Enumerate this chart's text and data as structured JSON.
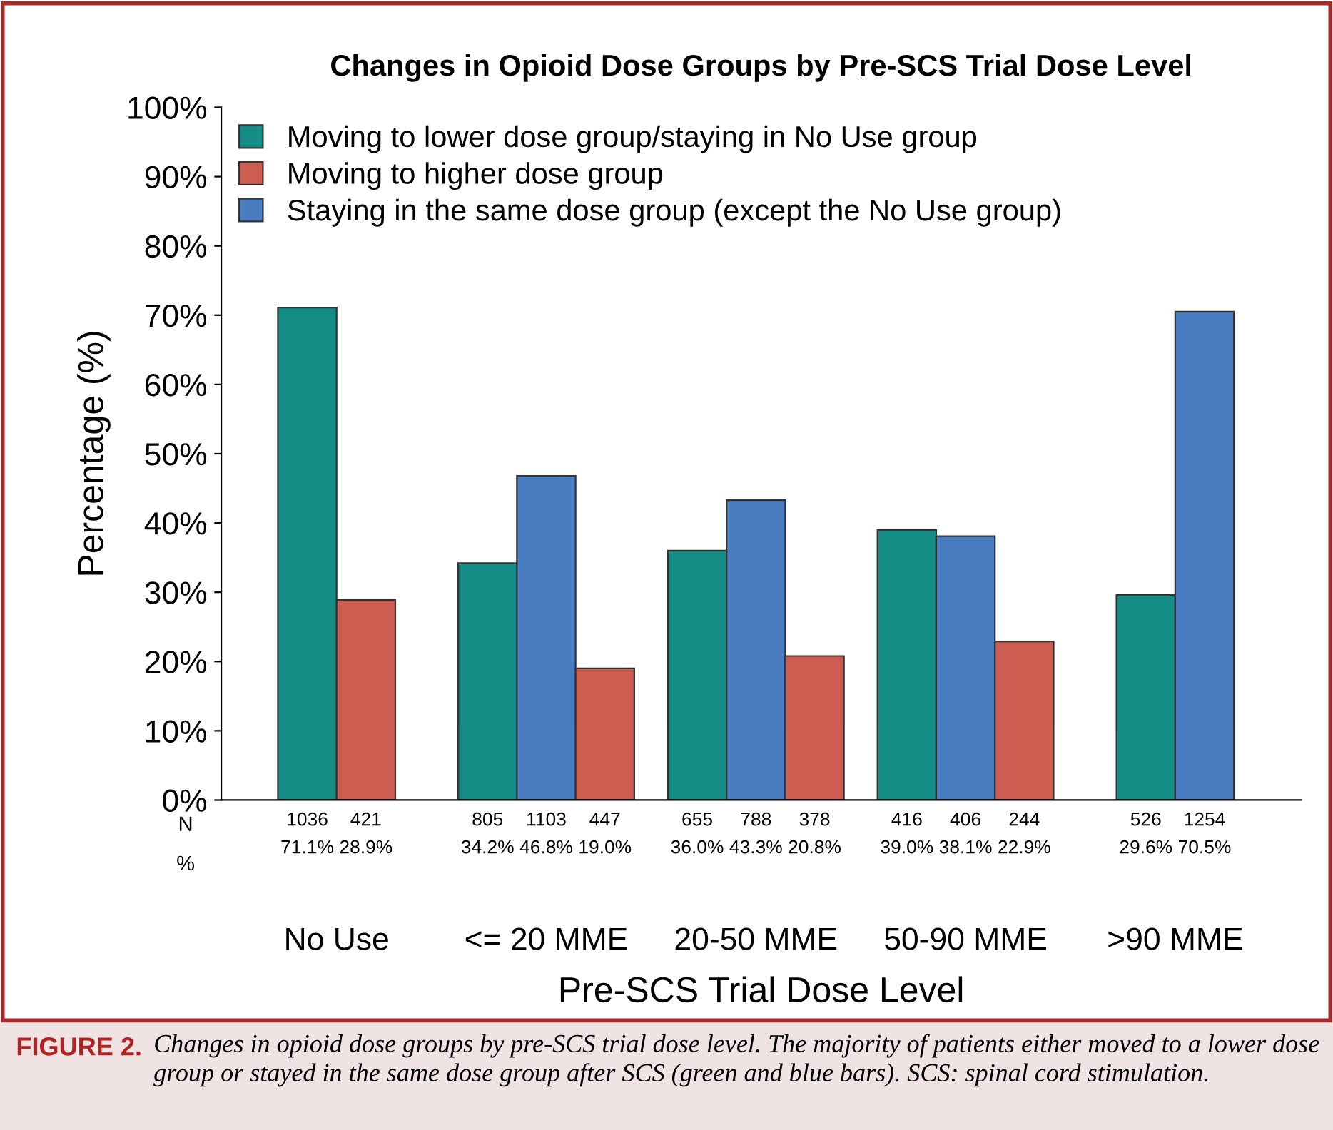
{
  "chart_data": {
    "type": "bar",
    "title": "Changes in Opioid Dose Groups by Pre-SCS Trial Dose Level",
    "xlabel": "Pre-SCS Trial Dose Level",
    "ylabel": "Percentage (%)",
    "categories": [
      "No Use",
      "<= 20 MME",
      "20-50 MME",
      "50-90 MME",
      ">90 MME"
    ],
    "series": [
      {
        "name": "Moving to lower dose group/staying in No Use group",
        "color": "#138d86",
        "values": [
          71.1,
          34.2,
          36.0,
          39.0,
          29.6
        ],
        "value_labels": [
          "1036\n71.1%",
          "805\n34.2%",
          "655\n36.0%",
          "416\n39.0%",
          "526\n29.6%"
        ]
      },
      {
        "name": "Moving to higher dose group",
        "color": "#cd5c51",
        "values": [
          28.9,
          19.0,
          20.8,
          22.9,
          null
        ],
        "value_labels": [
          "421\n28.9%",
          "447\n19.0%",
          "378\n20.8%",
          "244\n22.9%",
          null
        ]
      },
      {
        "name": "Staying in the same dose group (except the No Use group)",
        "color": "#4a7cc2",
        "values": [
          null,
          46.8,
          43.3,
          38.1,
          70.5
        ],
        "value_labels": [
          null,
          "1103\n46.8%",
          "788\n43.3%",
          "406\n38.1%",
          "1254\n70.5%"
        ]
      }
    ],
    "ylim": [
      0,
      100
    ],
    "yticks": [
      {
        "value": 0,
        "label": "0%"
      },
      {
        "value": 10,
        "label": "10%"
      },
      {
        "value": 20,
        "label": "20%"
      },
      {
        "value": 30,
        "label": "30%"
      },
      {
        "value": 40,
        "label": "40%"
      },
      {
        "value": 50,
        "label": "50%"
      },
      {
        "value": 60,
        "label": "60%"
      },
      {
        "value": 70,
        "label": "70%"
      },
      {
        "value": 80,
        "label": "80%"
      },
      {
        "value": 90,
        "label": "90%"
      },
      {
        "value": 100,
        "label": "100%"
      }
    ],
    "grid": false,
    "legend": "top left",
    "annotations": [
      "N",
      "%",
      "FIGURE 2.",
      "Changes in opioid dose groups by pre-SCS trial dose level. The majority of patients either moved to a lower dose group or stayed in the same dose group after SCS (green and blue bars). SCS: spinal cord stimulation."
    ]
  }
}
